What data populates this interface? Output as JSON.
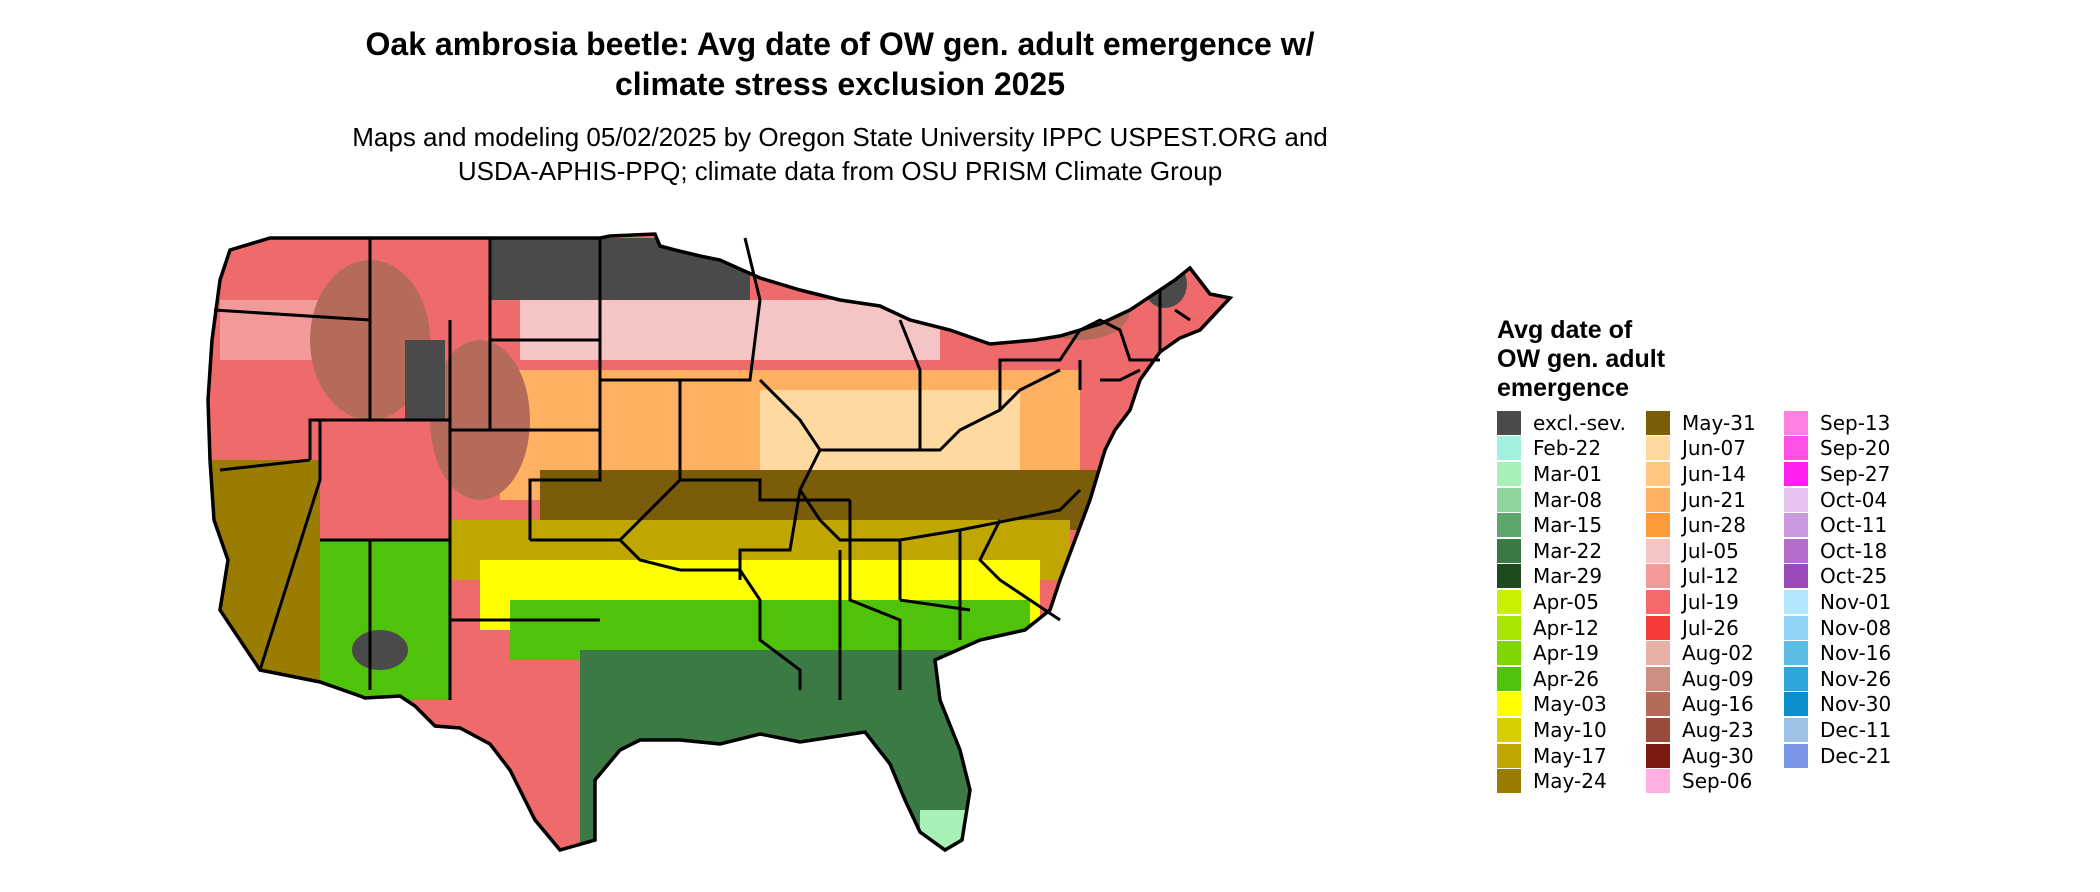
{
  "title": {
    "line1": "Oak ambrosia beetle: Avg date of OW gen. adult emergence w/",
    "line2": "climate stress exclusion 2025"
  },
  "subtitle": {
    "line1": "Maps and modeling 05/02/2025 by Oregon State University IPPC USPEST.ORG and",
    "line2": "USDA-APHIS-PPQ; climate data from OSU PRISM Climate Group"
  },
  "legend": {
    "title_lines": [
      "Avg date of",
      "OW gen. adult",
      "emergence"
    ],
    "columns": [
      [
        {
          "label": "excl.-sev.",
          "color": "#4a4a4a"
        },
        {
          "label": "Feb-22",
          "color": "#a3f0df"
        },
        {
          "label": "Mar-01",
          "color": "#a8f0b8"
        },
        {
          "label": "Mar-08",
          "color": "#8fd49a"
        },
        {
          "label": "Mar-15",
          "color": "#5fa66a"
        },
        {
          "label": "Mar-22",
          "color": "#3b7a44"
        },
        {
          "label": "Mar-29",
          "color": "#1e4a1f"
        },
        {
          "label": "Apr-05",
          "color": "#c8f000"
        },
        {
          "label": "Apr-12",
          "color": "#a6e600"
        },
        {
          "label": "Apr-19",
          "color": "#7fd600"
        },
        {
          "label": "Apr-26",
          "color": "#4fc20a"
        },
        {
          "label": "May-03",
          "color": "#ffff00"
        },
        {
          "label": "May-10",
          "color": "#d9cf00"
        },
        {
          "label": "May-17",
          "color": "#bfa600"
        },
        {
          "label": "May-24",
          "color": "#9a7d00"
        }
      ],
      [
        {
          "label": "May-31",
          "color": "#7a5c0a"
        },
        {
          "label": "Jun-07",
          "color": "#ffd9a0"
        },
        {
          "label": "Jun-14",
          "color": "#ffc680"
        },
        {
          "label": "Jun-21",
          "color": "#ffb060"
        },
        {
          "label": "Jun-28",
          "color": "#ff9a3a"
        },
        {
          "label": "Jul-05",
          "color": "#f5c5c5"
        },
        {
          "label": "Jul-12",
          "color": "#f29a9a"
        },
        {
          "label": "Jul-19",
          "color": "#f56a6a"
        },
        {
          "label": "Jul-26",
          "color": "#f53a3a"
        },
        {
          "label": "Aug-02",
          "color": "#e6b0a6"
        },
        {
          "label": "Aug-09",
          "color": "#cc9080"
        },
        {
          "label": "Aug-16",
          "color": "#b56a5a"
        },
        {
          "label": "Aug-23",
          "color": "#9a4a3a"
        },
        {
          "label": "Aug-30",
          "color": "#7a1a10"
        },
        {
          "label": "Sep-06",
          "color": "#ffb0e0"
        }
      ],
      [
        {
          "label": "Sep-13",
          "color": "#ff80e0"
        },
        {
          "label": "Sep-20",
          "color": "#ff50e6"
        },
        {
          "label": "Sep-27",
          "color": "#ff20f0"
        },
        {
          "label": "Oct-04",
          "color": "#e6c2ee"
        },
        {
          "label": "Oct-11",
          "color": "#cc99e0"
        },
        {
          "label": "Oct-18",
          "color": "#b36ccc"
        },
        {
          "label": "Oct-25",
          "color": "#994ab8"
        },
        {
          "label": "Nov-01",
          "color": "#b3e6ff"
        },
        {
          "label": "Nov-08",
          "color": "#8fd4f5"
        },
        {
          "label": "Nov-16",
          "color": "#5cbce6"
        },
        {
          "label": "Nov-26",
          "color": "#2ea6d9"
        },
        {
          "label": "Nov-30",
          "color": "#0a8fcc"
        },
        {
          "label": "Dec-11",
          "color": "#9ec2e6"
        },
        {
          "label": "Dec-21",
          "color": "#7a94e6"
        }
      ]
    ]
  },
  "map_colors": {
    "excluded": "#4a4a4a",
    "northwest": "#ef6a6a",
    "northwest_light": "#f29a9a",
    "mountain_brown": "#b56a5a",
    "north_pink": "#f5c5c5",
    "central_orange": "#ffb060",
    "central_light": "#ffd9a0",
    "midsouth_olive": "#7a5c0a",
    "south_gold": "#bfa600",
    "south_yellow": "#ffff00",
    "gulf_green": "#4fc20a",
    "deep_south": "#3b7a44",
    "tip": "#a8f0b8",
    "california": "#9a7d00",
    "state_line": "#000000"
  }
}
